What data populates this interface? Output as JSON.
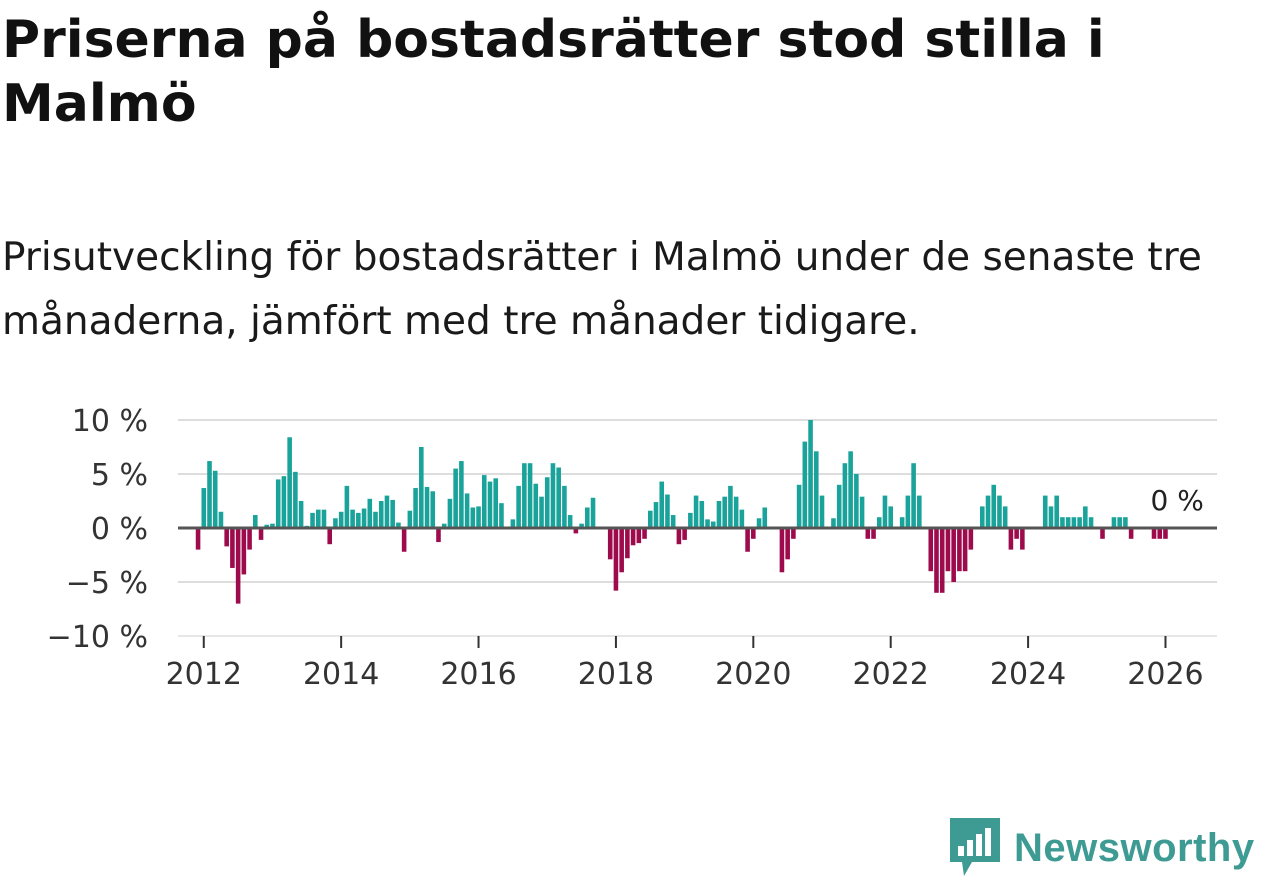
{
  "header": {
    "title": "Priserna på bostadsrätter stod stilla i Malmö",
    "subtitle": "Prisutveckling för bostadsrätter i Malmö under de senaste tre månaderna, jämfört med tre månader tidigare."
  },
  "brand": {
    "name": "Newsworthy",
    "color": "#3e9b93",
    "icon": "newsworthy-logo-icon"
  },
  "colors": {
    "positive": "#1aa39a",
    "negative": "#9e0b4d",
    "grid": "#dddddd",
    "baseline": "#555555"
  },
  "chart_data": {
    "type": "bar",
    "title": "Priserna på bostadsrätter stod stilla i Malmö",
    "subtitle": "Prisutveckling för bostadsrätter i Malmö under de senaste tre månaderna, jämfört med tre månader tidigare.",
    "xlabel": "",
    "ylabel": "",
    "unit": "%",
    "ylim": [
      -10,
      10
    ],
    "yticks": [
      10,
      5,
      0,
      -5,
      -10
    ],
    "ytick_labels": [
      "10 %",
      "5 %",
      "0 %",
      "−5 %",
      "−10 %"
    ],
    "xticks": [
      2012,
      2014,
      2016,
      2018,
      2020,
      2022,
      2024,
      2026
    ],
    "xtick_labels": [
      "2012",
      "2014",
      "2016",
      "2018",
      "2020",
      "2022",
      "2024",
      "2026"
    ],
    "x_start": 2011.917,
    "x_step": 0.08333,
    "grid": true,
    "end_label": "0 %",
    "series": [
      {
        "name": "Prisutveckling",
        "values": [
          -2,
          3.7,
          6.2,
          5.3,
          1.5,
          -1.7,
          -3.7,
          -7,
          -4.3,
          -2,
          1.2,
          -1.1,
          0.3,
          0.4,
          4.5,
          4.8,
          8.4,
          5.2,
          2.5,
          0.2,
          1.4,
          1.7,
          1.7,
          -1.5,
          0.9,
          1.5,
          3.9,
          1.7,
          1.4,
          1.8,
          2.7,
          1.5,
          2.5,
          3,
          2.6,
          0.5,
          -2.2,
          1.6,
          3.7,
          7.5,
          3.8,
          3.4,
          -1.3,
          0.4,
          2.7,
          5.5,
          6.2,
          3.2,
          1.9,
          2,
          4.9,
          4.3,
          4.6,
          2.3,
          0.1,
          0.8,
          3.9,
          6,
          6,
          4.1,
          2.9,
          4.7,
          6,
          5.6,
          3.9,
          1.2,
          -0.5,
          0.4,
          1.9,
          2.8,
          0.1,
          0.1,
          -2.9,
          -5.8,
          -4.1,
          -2.8,
          -1.6,
          -1.4,
          -1,
          1.6,
          2.4,
          4.3,
          3.1,
          1.2,
          -1.5,
          -1.1,
          1.4,
          3,
          2.5,
          0.8,
          0.6,
          2.5,
          2.9,
          3.9,
          2.9,
          1.7,
          -2.2,
          -1,
          0.9,
          1.9,
          0.1,
          0.1,
          -4.1,
          -2.9,
          -1,
          4,
          8,
          10,
          7.1,
          3,
          0.1,
          0.9,
          4,
          6,
          7.1,
          5,
          2.9,
          -1,
          -1,
          1,
          3,
          2,
          0.1,
          1,
          3,
          6,
          3,
          0.1,
          -4,
          -6,
          -6,
          -4,
          -5,
          -4,
          -4,
          -2,
          0.1,
          2,
          3,
          4,
          3,
          2,
          -2,
          -1,
          -2,
          0.1,
          0.1,
          0.1,
          3,
          2,
          3,
          1,
          1,
          1,
          1,
          2,
          1,
          0.1,
          -1,
          0.1,
          1,
          1,
          1,
          -1,
          0.1,
          0.1,
          0.1,
          -1,
          -1,
          -1,
          0
        ]
      }
    ]
  }
}
